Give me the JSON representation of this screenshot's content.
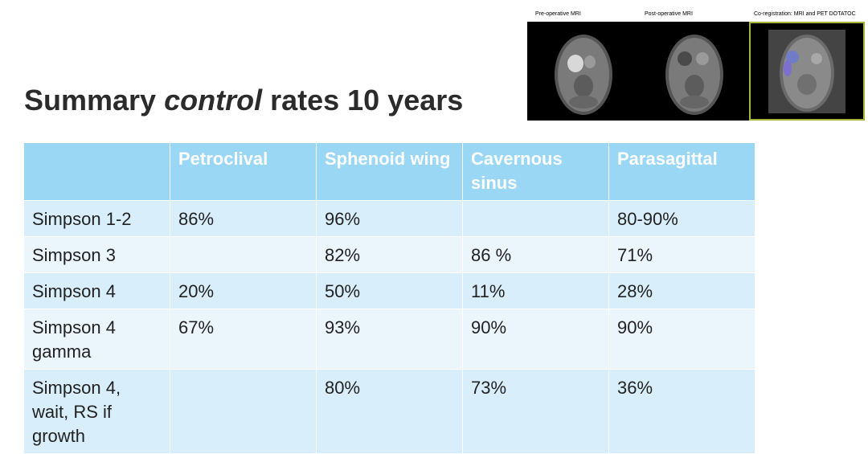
{
  "title": {
    "part1": "Summary ",
    "part2": "control",
    "part3": " rates 10 years"
  },
  "figure": {
    "labels": [
      "Pre-operative MRI",
      "Post-operative MRI",
      "Co-registration: MRI and PET DOTATOC"
    ]
  },
  "table": {
    "headers": [
      "",
      "Petroclival",
      "Sphenoid wing",
      "Cavernous sinus",
      "Parasagittal"
    ],
    "rows": [
      [
        "Simpson 1-2",
        "86%",
        "96%",
        "",
        "80-90%"
      ],
      [
        "Simpson 3",
        "",
        "82%",
        "86 %",
        "71%"
      ],
      [
        "Simpson 4",
        "20%",
        "50%",
        "11%",
        "28%"
      ],
      [
        "Simpson 4 gamma",
        "67%",
        "93%",
        "90%",
        "90%"
      ],
      [
        "Simpson 4, wait, RS if growth",
        "",
        "80%",
        "73%",
        "36%"
      ]
    ]
  },
  "colors": {
    "header_bg": "#9ad7f5",
    "row_odd": "#d9eefb",
    "row_even": "#eaf5fc",
    "highlight_border": "#a8b33a"
  }
}
